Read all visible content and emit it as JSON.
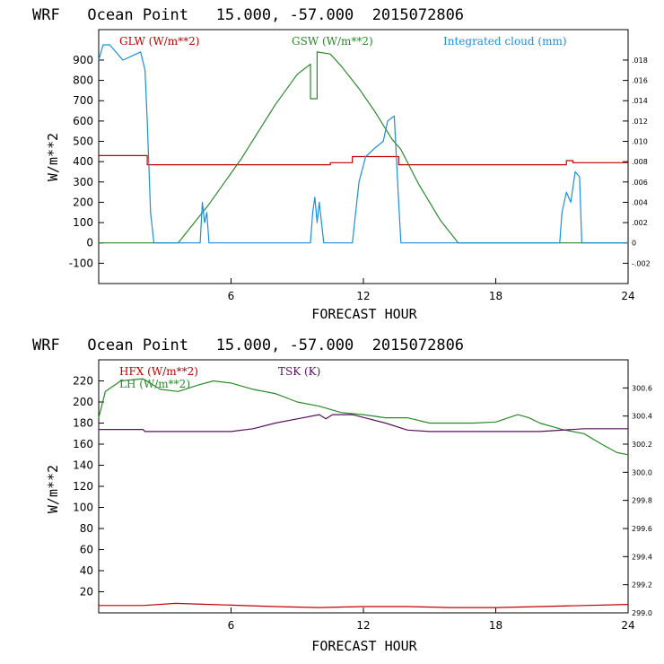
{
  "chart_data": [
    {
      "type": "line",
      "title": "WRF   Ocean Point   15.000, -57.000  2015072806",
      "xlabel": "FORECAST HOUR",
      "ylabel": "W/m**2",
      "xlim": [
        0,
        24
      ],
      "ylim": [
        -200,
        1050
      ],
      "y2lim": [
        -0.004,
        0.021
      ],
      "x_ticks": [
        6,
        12,
        18,
        24
      ],
      "y_ticks": [
        -100,
        0,
        100,
        200,
        300,
        400,
        500,
        600,
        700,
        800,
        900
      ],
      "y2_ticks": [
        -0.002,
        0,
        0.002,
        0.004,
        0.006,
        0.008,
        0.01,
        0.012,
        0.014,
        0.016,
        0.018
      ],
      "y2_tick_labels": [
        "-.002",
        "0",
        ".002",
        ".004",
        ".006",
        ".008",
        ".010",
        ".012",
        ".014",
        ".016",
        ".018"
      ],
      "series": [
        {
          "name": "GLW (W/m**2)",
          "color": "#c00000",
          "axis": "left",
          "x": [
            0,
            2.2,
            2.2,
            10.5,
            10.5,
            11.5,
            11.5,
            13.6,
            13.6,
            21.2,
            21.2,
            21.5,
            21.5,
            24
          ],
          "y": [
            430,
            430,
            385,
            385,
            395,
            395,
            425,
            425,
            385,
            385,
            405,
            405,
            395,
            395
          ]
        },
        {
          "name": "GSW (W/m**2)",
          "color": "#2a8a2a",
          "axis": "left",
          "x": [
            0,
            3.6,
            5,
            6.5,
            8,
            9,
            9.6,
            9.6,
            9.9,
            9.9,
            10.5,
            11,
            11.8,
            12.5,
            13.3,
            13.7,
            14.5,
            15.5,
            16.3,
            24
          ],
          "y": [
            0,
            0,
            190,
            420,
            680,
            830,
            880,
            710,
            710,
            940,
            930,
            870,
            760,
            650,
            510,
            460,
            290,
            110,
            0,
            0
          ]
        },
        {
          "name": "Integrated cloud (mm)",
          "color": "#1a8fe0",
          "axis": "right",
          "x": [
            0,
            0.2,
            0.5,
            1.1,
            1.6,
            1.9,
            2.1,
            2.2,
            2.35,
            2.5,
            4.6,
            4.7,
            4.8,
            4.9,
            5.0,
            9.6,
            9.7,
            9.8,
            9.9,
            10.0,
            10.1,
            10.2,
            11.5,
            11.8,
            12.1,
            12.5,
            12.9,
            13.1,
            13.4,
            13.6,
            13.7,
            20.9,
            21.0,
            21.2,
            21.4,
            21.6,
            21.8,
            21.9,
            24
          ],
          "y": [
            0.018,
            0.0195,
            0.0195,
            0.018,
            0.0185,
            0.0188,
            0.017,
            0.012,
            0.003,
            0,
            0,
            0.004,
            0.002,
            0.003,
            0,
            0,
            0.003,
            0.0045,
            0.002,
            0.004,
            0.002,
            0,
            0,
            0.006,
            0.0085,
            0.0093,
            0.01,
            0.012,
            0.0125,
            0.004,
            0,
            0,
            0.003,
            0.005,
            0.004,
            0.007,
            0.0065,
            0,
            0
          ]
        }
      ]
    },
    {
      "type": "line",
      "title": "WRF   Ocean Point   15.000, -57.000  2015072806",
      "xlabel": "FORECAST HOUR",
      "ylabel": "W/m**2",
      "xlim": [
        0,
        24
      ],
      "ylim": [
        0,
        240
      ],
      "y2lim": [
        299.0,
        300.8
      ],
      "x_ticks": [
        6,
        12,
        18,
        24
      ],
      "y_ticks": [
        20,
        40,
        60,
        80,
        100,
        120,
        140,
        160,
        180,
        200,
        220
      ],
      "y2_ticks": [
        299.0,
        299.2,
        299.4,
        299.6,
        299.8,
        300.0,
        300.2,
        300.4,
        300.6
      ],
      "y2_tick_labels": [
        "299.0",
        "299.2",
        "299.4",
        "299.6",
        "299.8",
        "300.0",
        "300.2",
        "300.4",
        "300.6"
      ],
      "series": [
        {
          "name": "HFX (W/m**2)",
          "color": "#c00000",
          "axis": "left",
          "x": [
            0,
            2,
            3.5,
            5,
            8,
            10,
            12,
            14,
            16,
            18,
            20,
            22,
            24
          ],
          "y": [
            7,
            7,
            9,
            8,
            6,
            5,
            6,
            6,
            5,
            5,
            6,
            7,
            8
          ]
        },
        {
          "name": "LH (W/m**2)",
          "color": "#2a8a2a",
          "axis": "left",
          "x": [
            0,
            0.3,
            1,
            2,
            2.8,
            3.6,
            4.5,
            5.2,
            6,
            7,
            8,
            9,
            10,
            11,
            12,
            13,
            14,
            15,
            16,
            17,
            18,
            19,
            19.5,
            20,
            21,
            22,
            22.8,
            23.5,
            24
          ],
          "y": [
            185,
            210,
            220,
            222,
            212,
            210,
            216,
            220,
            218,
            212,
            208,
            200,
            196,
            190,
            188,
            185,
            185,
            180,
            180,
            180,
            181,
            188,
            185,
            180,
            174,
            170,
            160,
            152,
            150
          ]
        },
        {
          "name": "TSK (K)",
          "color": "#5a1060",
          "axis": "right",
          "x": [
            0,
            2,
            2.1,
            6,
            7,
            8,
            9,
            10,
            10.3,
            10.6,
            11.5,
            12,
            13,
            14,
            15,
            16,
            18,
            20,
            22,
            24
          ],
          "y": [
            300.305,
            300.305,
            300.29,
            300.29,
            300.31,
            300.35,
            300.38,
            300.41,
            300.38,
            300.41,
            300.41,
            300.39,
            300.35,
            300.3,
            300.29,
            300.29,
            300.29,
            300.29,
            300.31,
            300.31
          ]
        }
      ]
    }
  ]
}
